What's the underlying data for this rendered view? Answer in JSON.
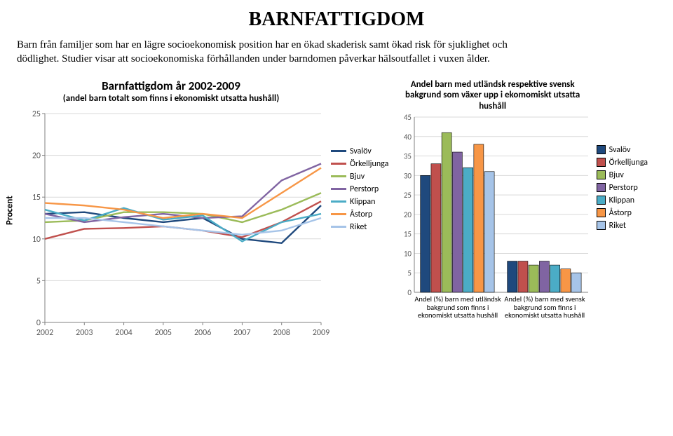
{
  "page_title": "BARNFATTIGDOM",
  "intro": "Barn från familjer som har en lägre socioekonomisk position har en ökad skaderisk samt ökad risk för sjuklighet och dödlighet. Studier visar att socioekonomiska förhållanden under barndomen påverkar hälsoutfallet i vuxen ålder.",
  "series_colors": {
    "Svalöv": "#1f497d",
    "Örkelljunga": "#c0504d",
    "Bjuv": "#9bbb59",
    "Perstorp": "#8064a2",
    "Klippan": "#4bacc6",
    "Åstorp": "#f79646",
    "Riket": "#a6c4e8"
  },
  "line_chart": {
    "title": "Barnfattigdom år 2002-2009",
    "subtitle": "(andel barn totalt som finns i ekonomiskt utsatta hushåll)",
    "title_fontsize": 17,
    "subtitle_fontsize": 13,
    "ylabel": "Procent",
    "years": [
      "2002",
      "2003",
      "2004",
      "2005",
      "2006",
      "2007",
      "2008",
      "2009"
    ],
    "ylim": [
      0,
      25
    ],
    "ytick_step": 5,
    "line_width": 2.4,
    "series": [
      {
        "name": "Svalöv",
        "values": [
          13.0,
          13.2,
          12.5,
          12.0,
          12.5,
          10.0,
          9.5,
          14.0
        ]
      },
      {
        "name": "Örkelljunga",
        "values": [
          10.0,
          11.2,
          11.3,
          11.5,
          11.0,
          10.2,
          12.0,
          14.5
        ]
      },
      {
        "name": "Bjuv",
        "values": [
          12.0,
          12.2,
          13.2,
          13.2,
          13.0,
          12.0,
          13.5,
          15.5
        ]
      },
      {
        "name": "Perstorp",
        "values": [
          13.0,
          12.0,
          12.6,
          13.0,
          12.5,
          12.7,
          17.0,
          19.0
        ]
      },
      {
        "name": "Klippan",
        "values": [
          13.5,
          12.2,
          13.7,
          12.3,
          12.8,
          9.7,
          12.0,
          13.0
        ]
      },
      {
        "name": "Åstorp",
        "values": [
          14.3,
          14.0,
          13.5,
          12.5,
          13.0,
          12.5,
          15.5,
          18.5
        ]
      },
      {
        "name": "Riket",
        "values": [
          12.5,
          12.5,
          12.0,
          11.5,
          11.0,
          10.5,
          11.0,
          12.5
        ]
      }
    ],
    "grid_color": "#d9d9d9",
    "axis_color": "#808080",
    "tick_fontsize": 12
  },
  "bar_chart": {
    "title": "Andel  barn med utländsk respektive svensk bakgrund som växer upp i ekomomiskt utsatta hushåll",
    "title_fontsize": 13,
    "ylim": [
      0,
      45
    ],
    "ytick_step": 5,
    "categories": [
      "Andel (%) barn med utländsk bakgrund som finns i ekonomiskt utsatta hushåll",
      "Andel (%) barn med svensk bakgrund som finns i ekonomiskt utsatta hushåll"
    ],
    "groups": [
      {
        "name": "Svalöv",
        "values": [
          30,
          8
        ]
      },
      {
        "name": "Örkelljunga",
        "values": [
          33,
          8
        ]
      },
      {
        "name": "Bjuv",
        "values": [
          41,
          7
        ]
      },
      {
        "name": "Perstorp",
        "values": [
          36,
          8
        ]
      },
      {
        "name": "Klippan",
        "values": [
          32,
          7
        ]
      },
      {
        "name": "Åstorp",
        "values": [
          38,
          6
        ]
      },
      {
        "name": "Riket",
        "values": [
          31,
          5
        ]
      }
    ],
    "grid_color": "#d9d9d9",
    "axis_color": "#808080",
    "tick_fontsize": 11,
    "bar_border": "#000000"
  },
  "legend_order": [
    "Svalöv",
    "Örkelljunga",
    "Bjuv",
    "Perstorp",
    "Klippan",
    "Åstorp",
    "Riket"
  ]
}
